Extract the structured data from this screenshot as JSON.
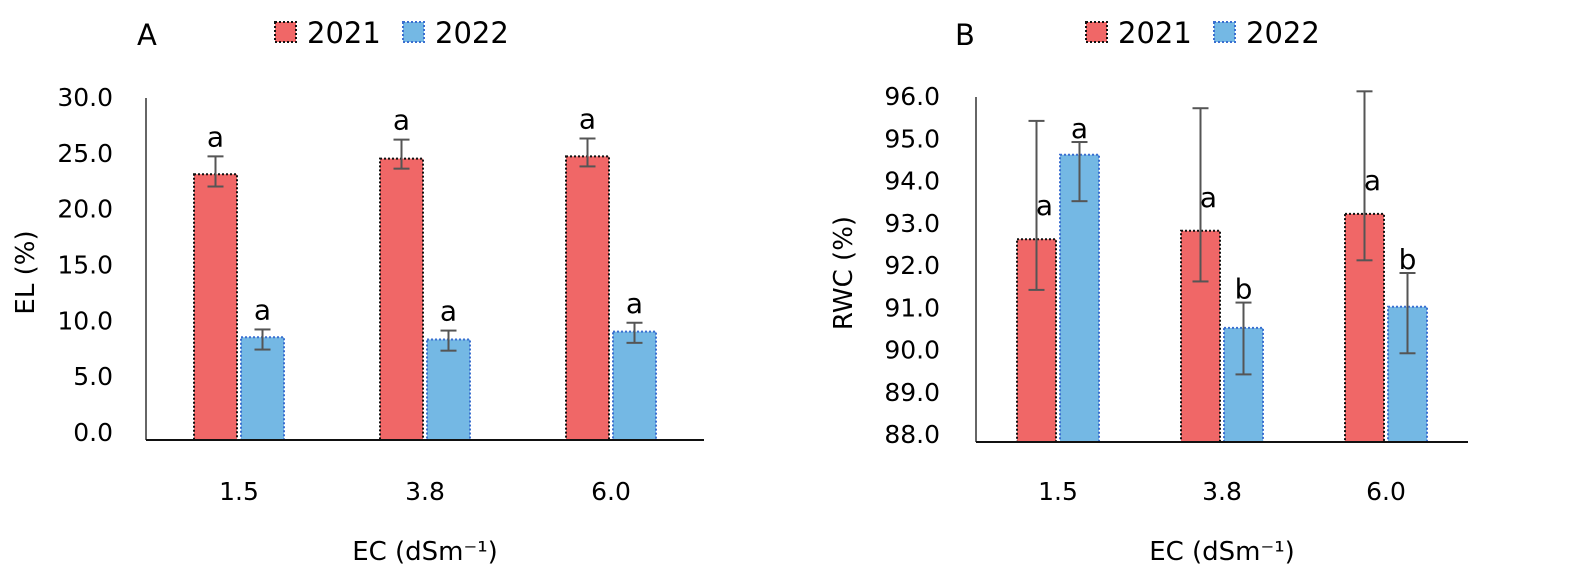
{
  "colors": {
    "2021": "#F06767",
    "2022": "#74B8E4",
    "border_2021": "#111111",
    "border_2022": "#3A6FD0",
    "error_bar": "#555555"
  },
  "chart_data": [
    {
      "type": "bar",
      "panel_label": "A",
      "categories": [
        "1.5",
        "3.8",
        "6.0"
      ],
      "xlabel": "EC (dSm⁻¹)",
      "ylabel": "EL (%)",
      "ylim": [
        0,
        30
      ],
      "yticks": [
        "0.0",
        "5.0",
        "10.0",
        "15.0",
        "20.0",
        "25.0",
        "30.0"
      ],
      "grid": false,
      "legend": "top",
      "series": [
        {
          "name": "2021",
          "values": [
            23.8,
            25.2,
            25.4
          ],
          "error_upper": [
            25.4,
            26.9,
            27.0
          ],
          "error_lower": [
            22.7,
            24.3,
            24.5
          ],
          "letters": [
            "a",
            "a",
            "a"
          ]
        },
        {
          "name": "2022",
          "values": [
            9.2,
            9.0,
            9.7
          ],
          "error_upper": [
            9.9,
            9.8,
            10.5
          ],
          "error_lower": [
            8.1,
            8.0,
            8.7
          ],
          "letters": [
            "a",
            "a",
            "a"
          ]
        }
      ]
    },
    {
      "type": "bar",
      "panel_label": "B",
      "categories": [
        "1.5",
        "3.8",
        "6.0"
      ],
      "xlabel": "EC (dSm⁻¹)",
      "ylabel": "RWC (%)",
      "ylim": [
        88,
        96
      ],
      "yticks": [
        "88.0",
        "89.0",
        "90.0",
        "91.0",
        "92.0",
        "93.0",
        "94.0",
        "95.0",
        "96.0"
      ],
      "grid": false,
      "legend": "top",
      "series": [
        {
          "name": "2021",
          "values": [
            92.8,
            93.0,
            93.4
          ],
          "error_upper": [
            95.6,
            95.9,
            96.3
          ],
          "error_lower": [
            91.6,
            91.8,
            92.3
          ],
          "letters": [
            "a",
            "a",
            "a"
          ]
        },
        {
          "name": "2022",
          "values": [
            94.8,
            90.7,
            91.2
          ],
          "error_upper": [
            95.1,
            91.3,
            92.0
          ],
          "error_lower": [
            93.7,
            89.6,
            90.1
          ],
          "letters": [
            "a",
            "b",
            "b"
          ]
        }
      ]
    }
  ]
}
